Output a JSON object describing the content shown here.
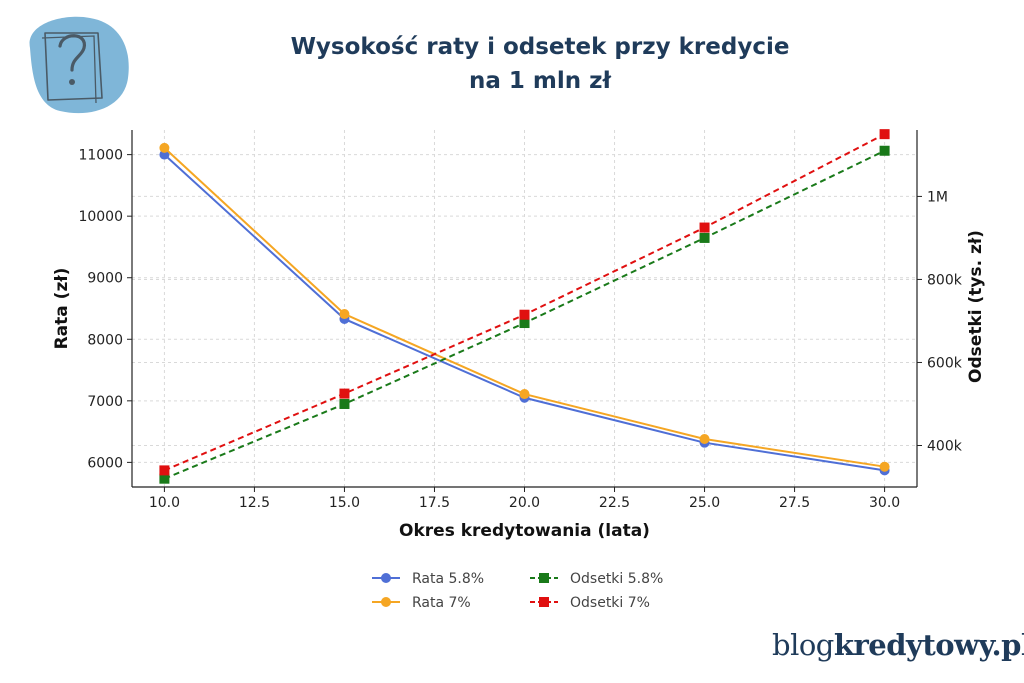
{
  "title": {
    "line1": "Wysokość raty i odsetek przy kredycie",
    "line2": "na 1 mln zł"
  },
  "brand": {
    "prefix": "blog",
    "suffix": "kredytowy.pl"
  },
  "logo_icon": "question-note-icon",
  "chart_data": {
    "type": "line",
    "xlabel": "Okres kredytowania (lata)",
    "ylabel": "Rata (zł)",
    "y2label": "Odsetki (tys. zł)",
    "xlim": [
      9.1,
      30.9
    ],
    "ylim": [
      5600,
      11400
    ],
    "y2lim": [
      300000,
      1160000
    ],
    "xticks": [
      10.0,
      12.5,
      15.0,
      17.5,
      20.0,
      22.5,
      25.0,
      27.5,
      30.0
    ],
    "xtick_labels": [
      "10.0",
      "12.5",
      "15.0",
      "17.5",
      "20.0",
      "22.5",
      "25.0",
      "27.5",
      "30.0"
    ],
    "yticks": [
      6000,
      7000,
      8000,
      9000,
      10000,
      11000
    ],
    "ytick_labels": [
      "6000",
      "7000",
      "8000",
      "9000",
      "10000",
      "11000"
    ],
    "y2ticks": [
      400000,
      600000,
      800000,
      1000000
    ],
    "y2tick_labels": [
      "400k",
      "600k",
      "800k",
      "1M"
    ],
    "grid": true,
    "legend_position": "bottom",
    "x": [
      10,
      15,
      20,
      25,
      30
    ],
    "series": [
      {
        "name": "Rata 5.8%",
        "axis": "left",
        "color": "#4f6fd6",
        "marker": "circle",
        "dashed": false,
        "values": [
          11000,
          8330,
          7050,
          6320,
          5870
        ]
      },
      {
        "name": "Rata 7%",
        "axis": "left",
        "color": "#f5a623",
        "marker": "circle",
        "dashed": false,
        "values": [
          11110,
          8410,
          7110,
          6380,
          5930
        ]
      },
      {
        "name": "Odsetki 5.8%",
        "axis": "right",
        "color": "#1a7a1a",
        "marker": "square",
        "dashed": true,
        "values": [
          320000,
          500000,
          695000,
          900000,
          1110000
        ]
      },
      {
        "name": "Odsetki 7%",
        "axis": "right",
        "color": "#e01010",
        "marker": "square",
        "dashed": true,
        "values": [
          340000,
          525000,
          715000,
          925000,
          1150000
        ]
      }
    ]
  }
}
